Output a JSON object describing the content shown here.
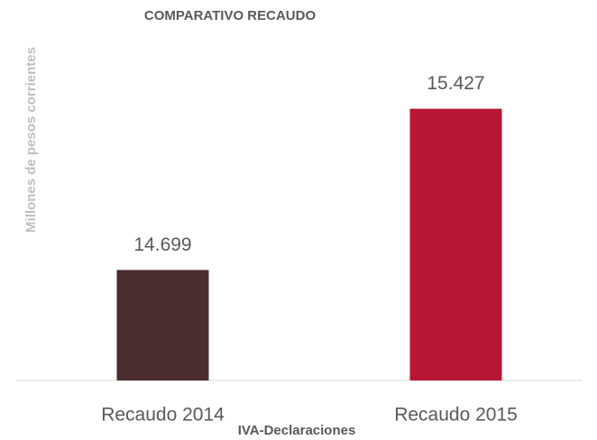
{
  "chart_data": {
    "type": "bar",
    "title": "COMPARATIVO RECAUDO",
    "y_label": "Millones de pesos corrientes",
    "x_label": "IVA-Declaraciones",
    "categories": [
      "Recaudo 2014",
      "Recaudo 2015"
    ],
    "values": [
      14699,
      15427
    ],
    "value_labels": [
      "14.699",
      "15.427"
    ],
    "colors": [
      "#4b2d2f",
      "#b81733"
    ],
    "ylim": [
      14200,
      15800
    ]
  }
}
